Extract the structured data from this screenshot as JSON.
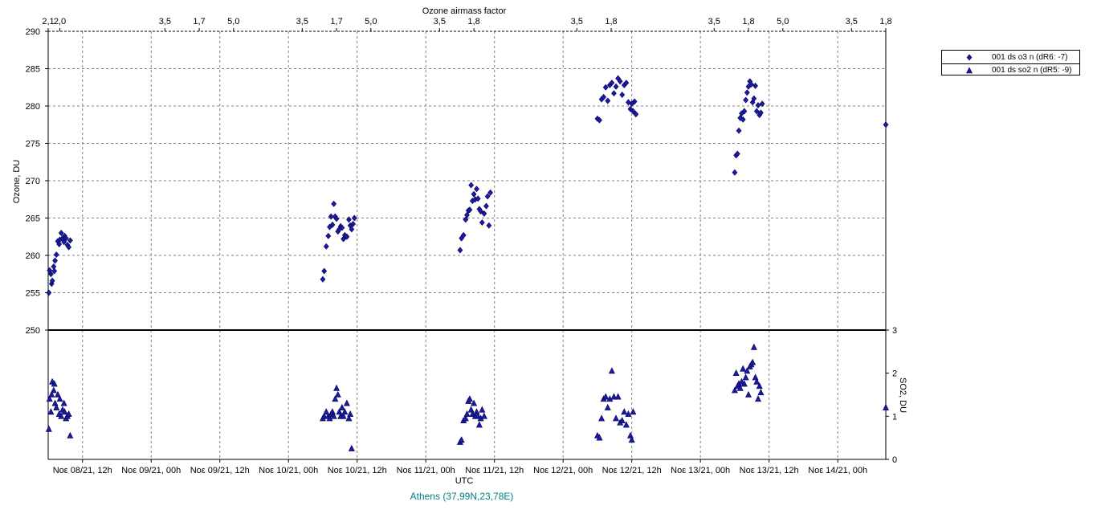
{
  "chart_data": {
    "type": "scatter",
    "top_axis_title": "Ozone airmass factor",
    "top_axis_ticks": [
      {
        "t": 0.0,
        "label": "2,1"
      },
      {
        "t": 0.17,
        "label": "2,0"
      },
      {
        "t": 1.7,
        "label": "3,5"
      },
      {
        "t": 2.2,
        "label": "1,7"
      },
      {
        "t": 2.7,
        "label": "5,0"
      },
      {
        "t": 3.7,
        "label": "3,5"
      },
      {
        "t": 4.2,
        "label": "1,7"
      },
      {
        "t": 4.7,
        "label": "5,0"
      },
      {
        "t": 5.7,
        "label": "3,5"
      },
      {
        "t": 6.2,
        "label": "1,8"
      },
      {
        "t": 7.7,
        "label": "3,5"
      },
      {
        "t": 8.2,
        "label": "1,8"
      },
      {
        "t": 9.7,
        "label": "3,5"
      },
      {
        "t": 10.2,
        "label": "1,8"
      },
      {
        "t": 10.7,
        "label": "5,0"
      },
      {
        "t": 11.7,
        "label": "3,5"
      },
      {
        "t": 12.2,
        "label": "1,8"
      }
    ],
    "x_label": "UTC",
    "x_ticks": [
      {
        "t": 0.5,
        "label": "Νοε 08/21, 12h"
      },
      {
        "t": 1.5,
        "label": "Νοε 09/21, 00h"
      },
      {
        "t": 2.5,
        "label": "Νοε 09/21, 12h"
      },
      {
        "t": 3.5,
        "label": "Νοε 10/21, 00h"
      },
      {
        "t": 4.5,
        "label": "Νοε 10/21, 12h"
      },
      {
        "t": 5.5,
        "label": "Νοε 11/21, 00h"
      },
      {
        "t": 6.5,
        "label": "Νοε 11/21, 12h"
      },
      {
        "t": 7.5,
        "label": "Νοε 12/21, 00h"
      },
      {
        "t": 8.5,
        "label": "Νοε 12/21, 12h"
      },
      {
        "t": 9.5,
        "label": "Νοε 13/21, 00h"
      },
      {
        "t": 10.5,
        "label": "Νοε 13/21, 12h"
      },
      {
        "t": 11.5,
        "label": "Νοε 14/21, 00h"
      }
    ],
    "x_range": [
      0,
      12.2
    ],
    "y_left_label": "Ozone, DU",
    "y_left_range": [
      250,
      290
    ],
    "y_left_ticks": [
      250,
      255,
      260,
      265,
      270,
      275,
      280,
      285,
      290
    ],
    "y_right_label": "SO2, DU",
    "y_right_range": [
      0,
      3
    ],
    "y_right_ticks": [
      0,
      1,
      2,
      3
    ],
    "grid": true,
    "legend_position": "right",
    "series": [
      {
        "name": "001 ds o3  n (dR6: -7)",
        "axis": "left",
        "marker": "diamond",
        "color": "#1a1aa6",
        "x": [
          0.01,
          0.02,
          0.04,
          0.05,
          0.06,
          0.08,
          0.09,
          0.1,
          0.12,
          0.14,
          0.16,
          0.17,
          0.19,
          0.21,
          0.23,
          0.24,
          0.26,
          0.28,
          0.3,
          0.32,
          4.0,
          4.02,
          4.05,
          4.08,
          4.1,
          4.12,
          4.14,
          4.16,
          4.18,
          4.2,
          4.22,
          4.24,
          4.26,
          4.28,
          4.3,
          4.32,
          4.35,
          4.38,
          4.4,
          4.42,
          4.44,
          4.46,
          6.0,
          6.02,
          6.05,
          6.08,
          6.1,
          6.12,
          6.14,
          6.16,
          6.18,
          6.2,
          6.22,
          6.24,
          6.26,
          6.28,
          6.3,
          6.32,
          6.35,
          6.38,
          6.4,
          6.42,
          6.44,
          8.0,
          8.03,
          8.06,
          8.09,
          8.12,
          8.15,
          8.18,
          8.21,
          8.24,
          8.27,
          8.3,
          8.33,
          8.36,
          8.39,
          8.42,
          8.45,
          8.48,
          8.5,
          8.52,
          8.54,
          8.56,
          10.0,
          10.02,
          10.04,
          10.06,
          10.08,
          10.1,
          10.12,
          10.14,
          10.16,
          10.18,
          10.2,
          10.22,
          10.24,
          10.26,
          10.28,
          10.3,
          10.32,
          10.34,
          10.36,
          10.38,
          10.4,
          12.2
        ],
        "y": [
          255.0,
          258.0,
          257.5,
          256.2,
          256.6,
          258.5,
          257.9,
          259.3,
          260.1,
          261.9,
          261.5,
          262.1,
          263.0,
          262.3,
          261.8,
          262.6,
          262.3,
          261.4,
          261.1,
          262.0,
          256.8,
          257.9,
          261.2,
          262.6,
          263.8,
          265.2,
          264.1,
          266.9,
          265.2,
          264.9,
          263.2,
          263.5,
          263.9,
          263.7,
          262.2,
          262.7,
          262.5,
          264.8,
          264.0,
          263.5,
          264.2,
          265.0,
          260.7,
          262.3,
          262.7,
          264.8,
          265.4,
          266.0,
          266.1,
          269.4,
          267.3,
          268.2,
          267.5,
          268.9,
          267.6,
          266.2,
          265.9,
          264.4,
          265.6,
          266.6,
          267.9,
          264.0,
          268.4,
          278.3,
          278.1,
          280.9,
          281.2,
          282.5,
          280.7,
          282.8,
          283.1,
          281.7,
          282.6,
          283.7,
          283.3,
          281.5,
          282.8,
          283.1,
          280.5,
          279.6,
          280.3,
          279.3,
          280.6,
          278.9,
          271.1,
          273.4,
          273.6,
          276.7,
          278.4,
          279.0,
          278.2,
          279.3,
          280.8,
          281.8,
          282.6,
          283.3,
          282.9,
          280.5,
          281.0,
          282.7,
          279.3,
          280.1,
          278.8,
          279.1,
          280.3,
          277.5
        ]
      },
      {
        "name": "001 ds so2 n (dR5: -9)",
        "axis": "right",
        "marker": "triangle",
        "color": "#1a1aa6",
        "x": [
          0.01,
          0.02,
          0.04,
          0.05,
          0.06,
          0.08,
          0.09,
          0.1,
          0.12,
          0.14,
          0.16,
          0.17,
          0.19,
          0.21,
          0.23,
          0.24,
          0.26,
          0.28,
          0.3,
          0.32,
          4.0,
          4.02,
          4.05,
          4.08,
          4.1,
          4.12,
          4.14,
          4.16,
          4.18,
          4.2,
          4.22,
          4.24,
          4.26,
          4.28,
          4.3,
          4.32,
          4.35,
          4.38,
          4.4,
          4.42,
          6.0,
          6.02,
          6.05,
          6.08,
          6.1,
          6.12,
          6.14,
          6.16,
          6.18,
          6.2,
          6.22,
          6.24,
          6.26,
          6.28,
          6.3,
          6.32,
          6.35,
          8.0,
          8.03,
          8.06,
          8.09,
          8.12,
          8.15,
          8.18,
          8.21,
          8.24,
          8.27,
          8.3,
          8.33,
          8.36,
          8.39,
          8.42,
          8.45,
          8.48,
          8.5,
          8.52,
          10.0,
          10.02,
          10.04,
          10.06,
          10.08,
          10.1,
          10.12,
          10.14,
          10.16,
          10.18,
          10.2,
          10.22,
          10.24,
          10.26,
          10.28,
          10.3,
          10.32,
          10.34,
          10.36,
          10.38,
          12.2
        ],
        "y": [
          0.7,
          1.4,
          1.1,
          1.5,
          1.8,
          1.6,
          1.75,
          1.3,
          1.2,
          1.5,
          1.05,
          1.4,
          1.0,
          1.15,
          1.3,
          1.1,
          0.95,
          1.0,
          1.05,
          0.55,
          0.95,
          1.0,
          1.1,
          1.0,
          0.95,
          1.05,
          1.1,
          1.0,
          1.4,
          1.65,
          1.5,
          1.1,
          1.0,
          1.2,
          1.0,
          1.1,
          1.3,
          0.95,
          1.05,
          0.25,
          0.4,
          0.45,
          0.9,
          0.95,
          1.05,
          1.35,
          1.4,
          1.15,
          1.05,
          1.3,
          1.0,
          1.1,
          1.0,
          0.8,
          0.95,
          1.15,
          1.0,
          0.55,
          0.5,
          0.95,
          1.4,
          1.45,
          1.2,
          1.4,
          2.05,
          1.45,
          0.95,
          1.45,
          0.85,
          0.9,
          1.1,
          0.8,
          1.05,
          0.55,
          0.45,
          1.1,
          1.6,
          2.0,
          1.7,
          1.75,
          1.65,
          1.8,
          2.1,
          1.75,
          1.9,
          2.05,
          1.5,
          2.15,
          2.2,
          2.25,
          2.6,
          1.9,
          1.8,
          1.4,
          1.7,
          1.55,
          1.2
        ]
      }
    ]
  },
  "caption": "Athens (37,99N,23,78E)"
}
